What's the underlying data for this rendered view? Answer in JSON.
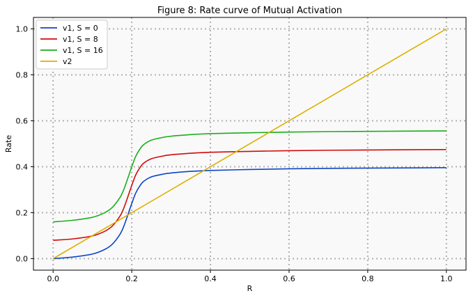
{
  "chart_data": {
    "type": "line",
    "title": "Figure 8: Rate curve of Mutual Activation",
    "xlabel": "R",
    "ylabel": "Rate",
    "xlim": [
      -0.05,
      1.05
    ],
    "ylim": [
      -0.05,
      1.05
    ],
    "xticks": [
      0.0,
      0.2,
      0.4,
      0.6,
      0.8,
      1.0
    ],
    "yticks": [
      0.0,
      0.2,
      0.4,
      0.6,
      0.8,
      1.0
    ],
    "xtick_labels": [
      "0.0",
      "0.2",
      "0.4",
      "0.6",
      "0.8",
      "1.0"
    ],
    "ytick_labels": [
      "0.0",
      "0.2",
      "0.4",
      "0.6",
      "0.8",
      "1.0"
    ],
    "grid": true,
    "legend_position": "top-left",
    "background": "#f9f9f9",
    "series": [
      {
        "name": "v1, S = 0",
        "color": "#0b45c7",
        "x": [
          0.0,
          0.05,
          0.1,
          0.13,
          0.15,
          0.17,
          0.18,
          0.19,
          0.2,
          0.21,
          0.22,
          0.23,
          0.25,
          0.28,
          0.3,
          0.35,
          0.4,
          0.5,
          0.6,
          0.7,
          0.8,
          0.9,
          1.0
        ],
        "y": [
          0.0,
          0.007,
          0.02,
          0.039,
          0.062,
          0.106,
          0.142,
          0.19,
          0.24,
          0.285,
          0.315,
          0.336,
          0.356,
          0.368,
          0.373,
          0.38,
          0.384,
          0.388,
          0.391,
          0.393,
          0.394,
          0.395,
          0.396
        ]
      },
      {
        "name": "v1, S = 8",
        "color": "#d20a0a",
        "x": [
          0.0,
          0.05,
          0.1,
          0.13,
          0.15,
          0.17,
          0.18,
          0.19,
          0.2,
          0.21,
          0.22,
          0.23,
          0.25,
          0.28,
          0.3,
          0.35,
          0.4,
          0.5,
          0.6,
          0.7,
          0.8,
          0.9,
          1.0
        ],
        "y": [
          0.08,
          0.086,
          0.099,
          0.118,
          0.141,
          0.185,
          0.221,
          0.269,
          0.319,
          0.364,
          0.394,
          0.415,
          0.435,
          0.447,
          0.452,
          0.459,
          0.463,
          0.467,
          0.47,
          0.472,
          0.473,
          0.474,
          0.475
        ]
      },
      {
        "name": "v1, S = 16",
        "color": "#1aad1a",
        "x": [
          0.0,
          0.05,
          0.1,
          0.13,
          0.15,
          0.17,
          0.18,
          0.19,
          0.2,
          0.21,
          0.22,
          0.23,
          0.25,
          0.28,
          0.3,
          0.35,
          0.4,
          0.5,
          0.6,
          0.7,
          0.8,
          0.9,
          1.0
        ],
        "y": [
          0.16,
          0.167,
          0.18,
          0.199,
          0.222,
          0.266,
          0.302,
          0.35,
          0.4,
          0.445,
          0.475,
          0.496,
          0.516,
          0.528,
          0.533,
          0.54,
          0.544,
          0.548,
          0.551,
          0.553,
          0.554,
          0.555,
          0.556
        ]
      },
      {
        "name": "v2",
        "color": "#ddb000",
        "x": [
          0.0,
          1.0
        ],
        "y": [
          0.0,
          1.0
        ]
      }
    ]
  }
}
